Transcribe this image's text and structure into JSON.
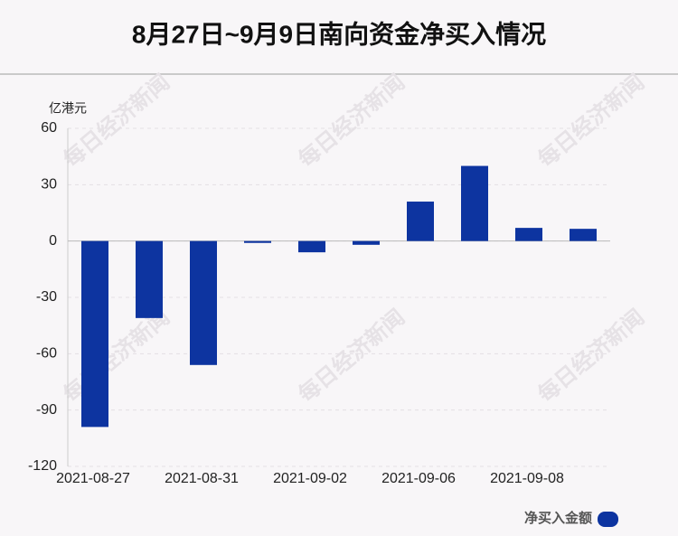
{
  "chart_data": {
    "type": "bar",
    "title": "8月27日~9月9日南向资金净买入情况",
    "y_axis_label": "亿港元",
    "watermark": "每日经济新闻",
    "categories": [
      "2021-08-27",
      null,
      "2021-08-31",
      null,
      "2021-09-02",
      null,
      "2021-09-06",
      null,
      "2021-09-08",
      null
    ],
    "series": [
      {
        "name": "净买入金额",
        "color": "#0d34a0",
        "values": [
          -99,
          -41,
          -66,
          -1,
          -6,
          -2,
          21,
          40,
          7,
          6.5
        ]
      }
    ],
    "ylim": [
      -120,
      60
    ],
    "yticks": [
      -120,
      -90,
      -60,
      -30,
      0,
      30,
      60
    ],
    "grid": true,
    "legend": "bottom-right"
  }
}
